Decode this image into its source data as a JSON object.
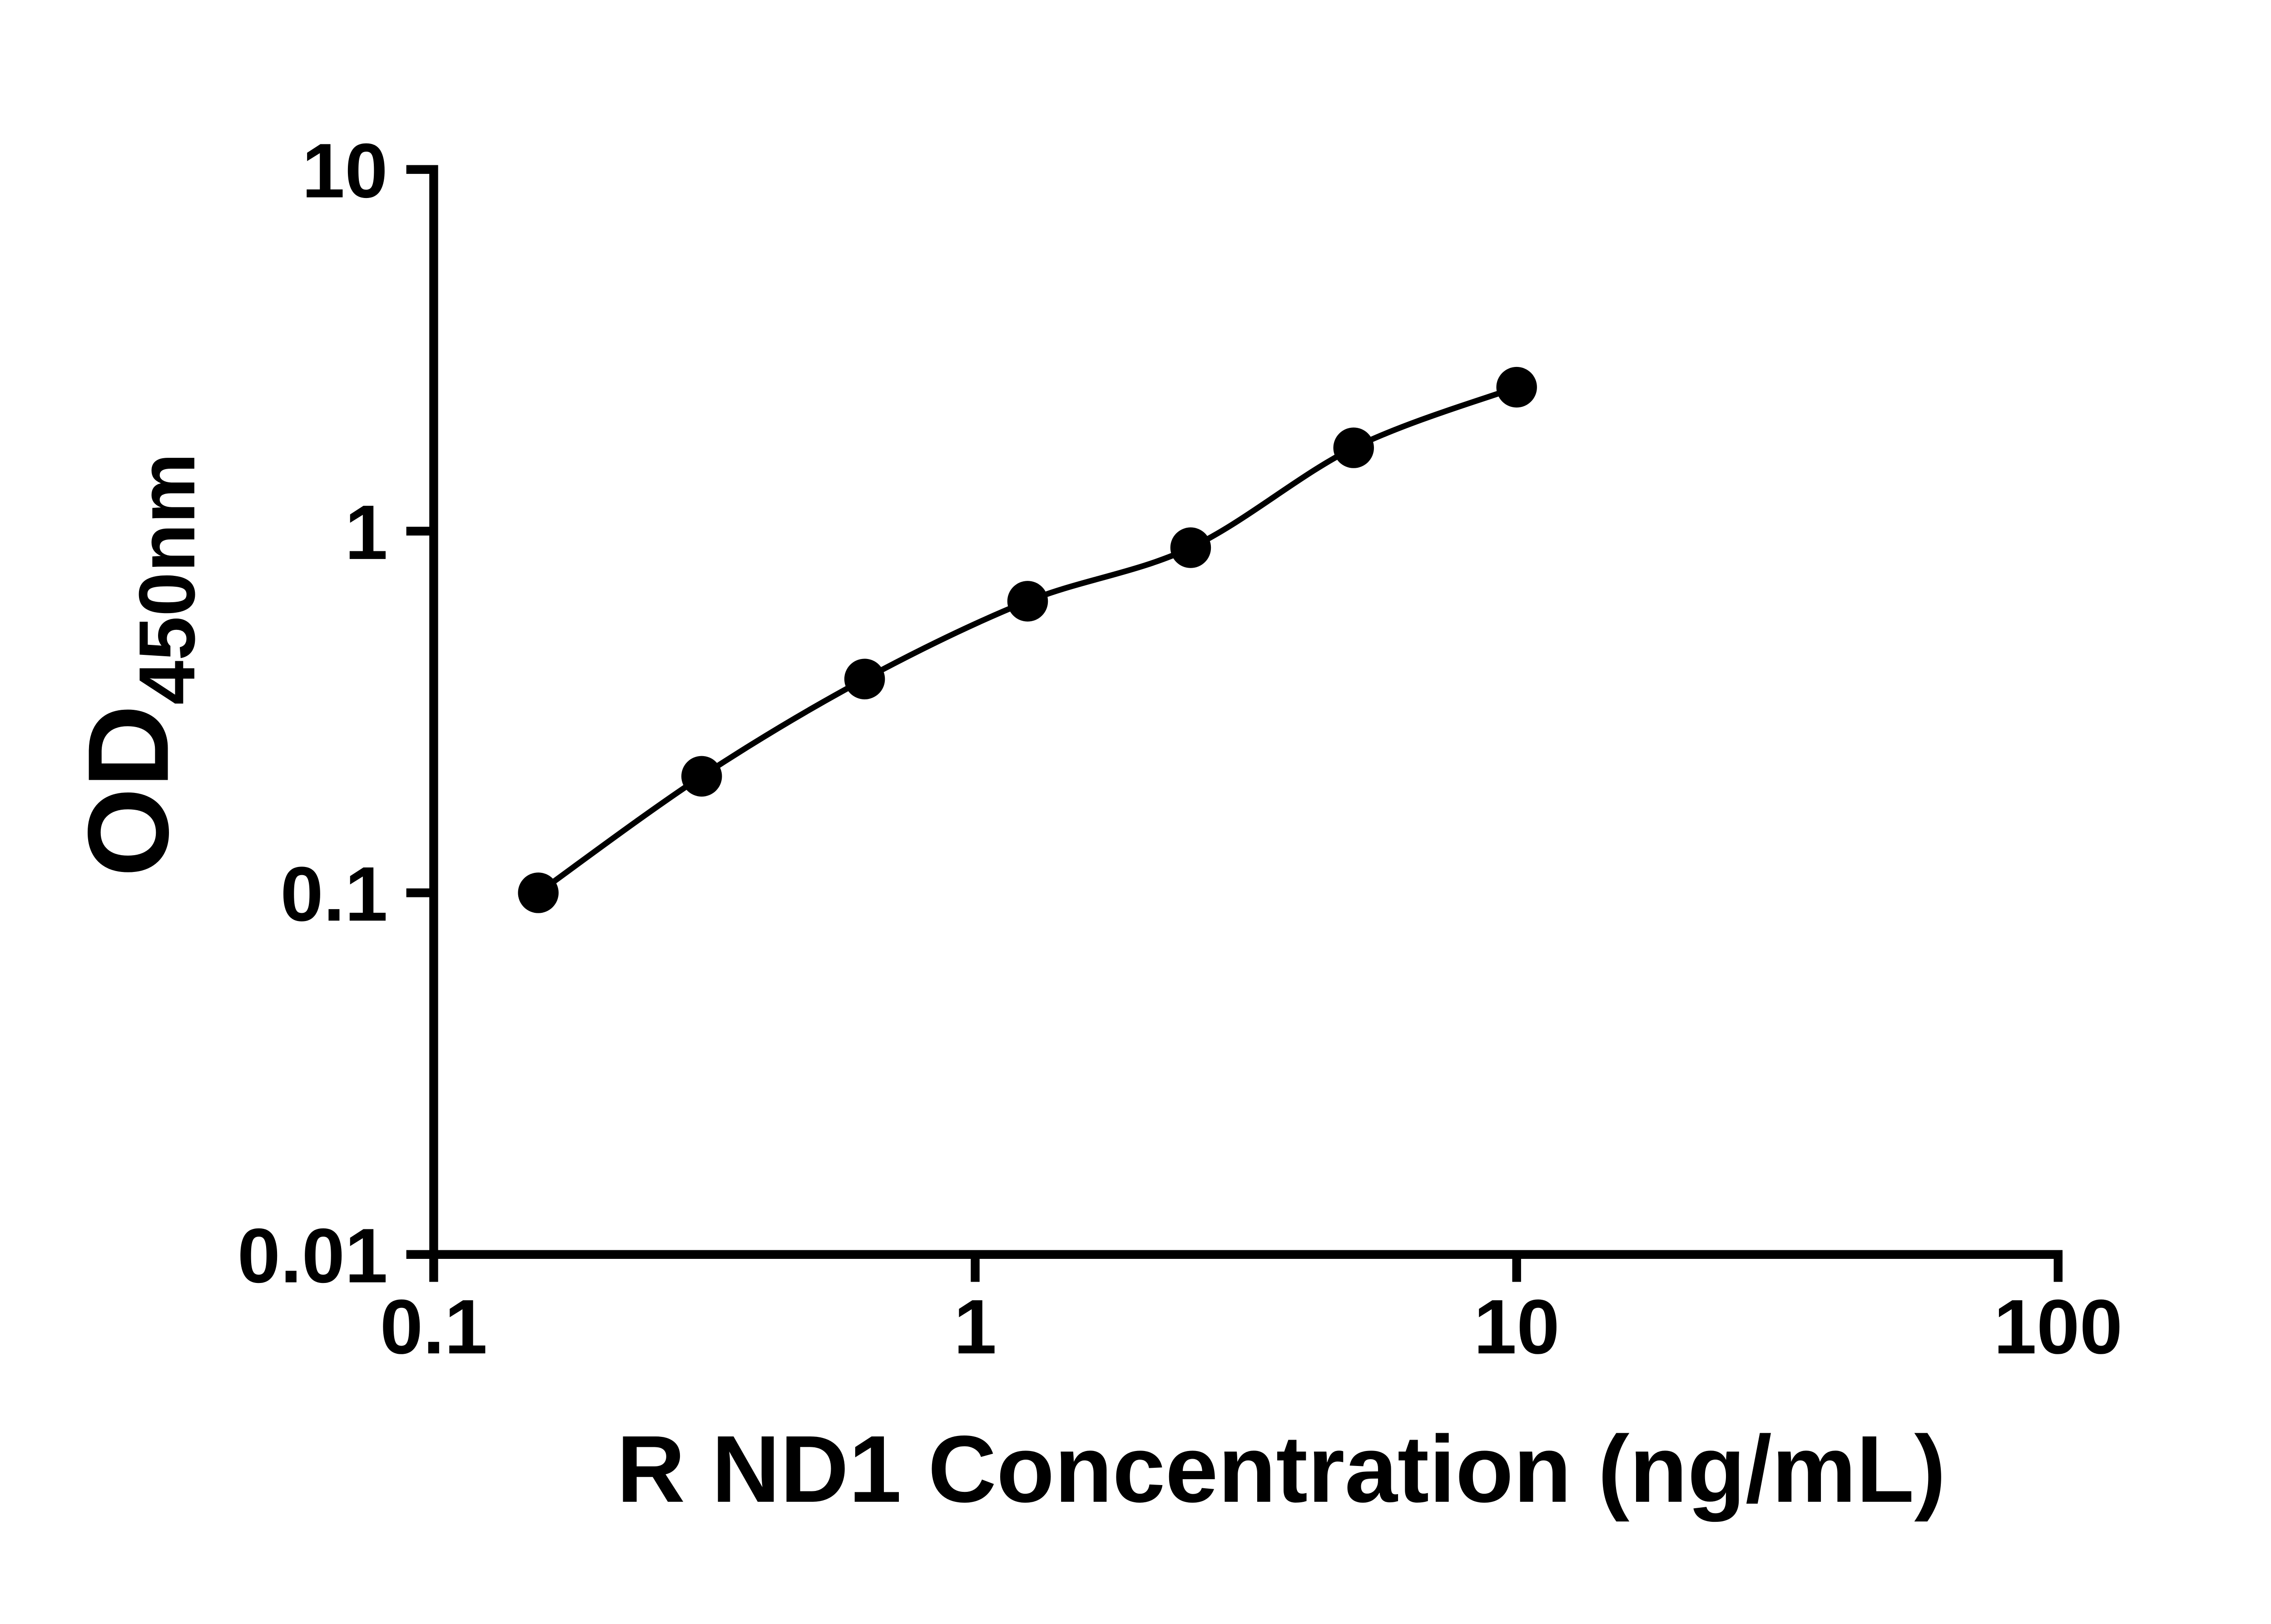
{
  "chart_data": {
    "type": "scatter",
    "xlabel": "R ND1 Concentration (ng/mL)",
    "ylabel_base": "OD",
    "ylabel_subscript": "450nm",
    "x_scale": "log",
    "y_scale": "log",
    "xlim": [
      0.1,
      100
    ],
    "ylim": [
      0.01,
      10
    ],
    "x_tick_values": [
      0.1,
      1,
      10,
      100
    ],
    "x_tick_labels": [
      "0.1",
      "1",
      "10",
      "100"
    ],
    "y_tick_values": [
      0.01,
      0.1,
      1,
      10
    ],
    "y_tick_labels": [
      "0.01",
      "0.1",
      "1",
      "10"
    ],
    "grid": false,
    "legend": false,
    "axis_color": "#000000",
    "marker_color": "#000000",
    "line_color": "#000000",
    "marker_shape": "filled-circle",
    "points": [
      {
        "x": 0.156,
        "y": 0.1
      },
      {
        "x": 0.3125,
        "y": 0.21
      },
      {
        "x": 0.625,
        "y": 0.39
      },
      {
        "x": 1.25,
        "y": 0.64
      },
      {
        "x": 2.5,
        "y": 0.9
      },
      {
        "x": 5,
        "y": 1.7
      },
      {
        "x": 10,
        "y": 2.5
      }
    ],
    "fit_line": "smooth curve through data points"
  }
}
